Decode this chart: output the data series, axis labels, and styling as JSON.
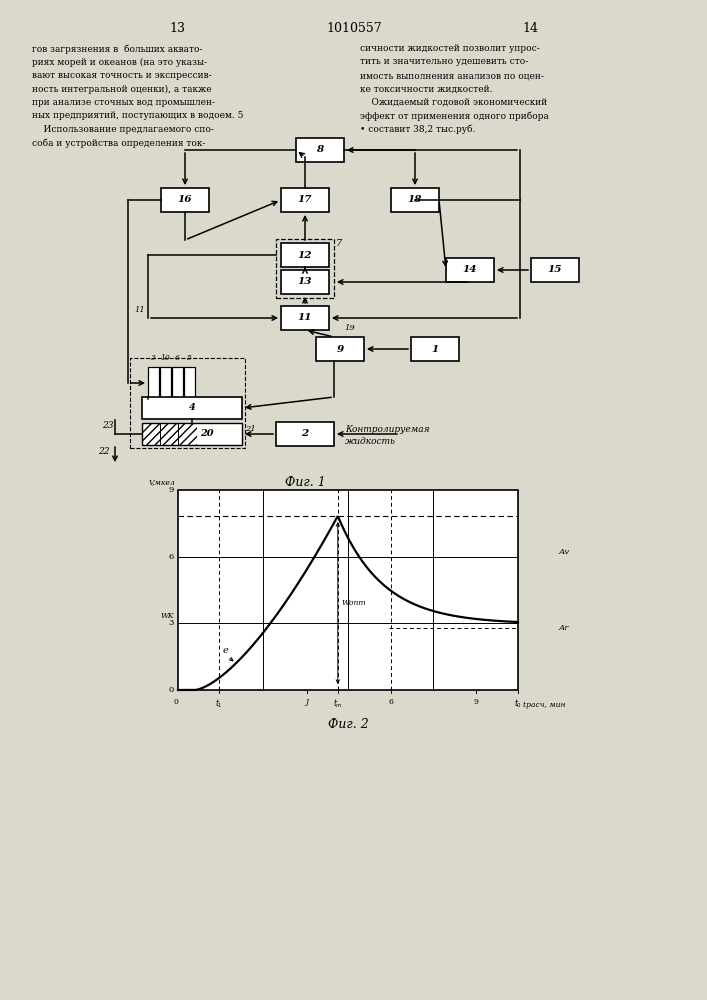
{
  "page_numbers": [
    "13",
    "1010557",
    "14"
  ],
  "left_text": [
    "гов загрязнения в  больших аквато-",
    "риях морей и океанов (на это указы-",
    "вают высокая точность и экспрессив-",
    "ность интегральной оценки), а также",
    "при анализе сточных вод промышлен-",
    "ных предприятий, поступающих в водоем. 5",
    "    Использование предлагаемого спо-",
    "соба и устройства определения ток-"
  ],
  "right_text": [
    "сичности жидкостей позволит упрос-",
    "тить и значительно удешевить сто-",
    "имость выполнения анализов по оцен-",
    "ке токсичности жидкостей.",
    "    Ожидаемый годовой экономический",
    "эффект от применения одного прибора",
    "• составит 38,2 тыс.руб."
  ],
  "fig1_caption": "Фиг. 1",
  "fig2_caption": "Фиг. 2",
  "bg_color": "#dbd8cc"
}
